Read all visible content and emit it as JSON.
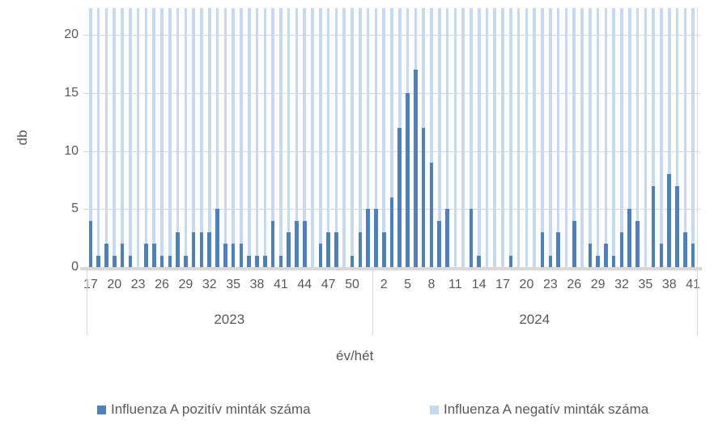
{
  "chart_data": {
    "type": "bar",
    "title": "",
    "xlabel": "év/hét",
    "ylabel": "db",
    "ylim": [
      0,
      22
    ],
    "y_ticks": [
      0,
      5,
      10,
      15,
      20
    ],
    "grid": "horizontal",
    "legend_position": "bottom",
    "bar_layout": "overlapped; negative-series bars exceed the y-axis maximum and are clipped at the plot top",
    "negative_counts_clipped_at_top": true,
    "series": [
      {
        "name": "Influenza A pozitív minták száma",
        "color": "#4d81be"
      },
      {
        "name": "Influenza A negatív minták száma",
        "color": "#c5d9f0"
      }
    ],
    "groups": [
      {
        "year_label": "2023",
        "weeks": [
          17,
          18,
          19,
          20,
          21,
          22,
          23,
          24,
          25,
          26,
          27,
          28,
          29,
          30,
          31,
          32,
          33,
          34,
          35,
          36,
          37,
          38,
          39,
          40,
          41,
          42,
          43,
          44,
          45,
          46,
          47,
          48,
          49,
          50,
          51,
          52
        ],
        "positive_counts": [
          4,
          1,
          2,
          1,
          2,
          1,
          0,
          2,
          2,
          1,
          1,
          3,
          1,
          3,
          3,
          3,
          5,
          2,
          2,
          2,
          1,
          1,
          1,
          4,
          1,
          3,
          4,
          4,
          0,
          2,
          3,
          3,
          0,
          1,
          3,
          5
        ],
        "week_tick_labels": [
          17,
          20,
          23,
          26,
          29,
          32,
          35,
          38,
          41,
          44,
          47,
          50
        ]
      },
      {
        "year_label": "2024",
        "weeks": [
          1,
          2,
          3,
          4,
          5,
          6,
          7,
          8,
          9,
          10,
          11,
          12,
          13,
          14,
          15,
          16,
          17,
          18,
          19,
          20,
          21,
          22,
          23,
          24,
          25,
          26,
          27,
          28,
          29,
          30,
          31,
          32,
          33,
          34,
          35,
          36,
          37,
          38,
          39,
          40,
          41
        ],
        "positive_counts": [
          5,
          3,
          6,
          12,
          15,
          17,
          12,
          9,
          4,
          5,
          0,
          0,
          5,
          1,
          0,
          0,
          0,
          1,
          0,
          0,
          0,
          3,
          1,
          3,
          0,
          4,
          0,
          2,
          1,
          2,
          1,
          3,
          5,
          4,
          0,
          7,
          2,
          8,
          7,
          3,
          2
        ],
        "week_tick_labels": [
          2,
          5,
          8,
          11,
          14,
          17,
          20,
          23,
          26,
          29,
          32,
          35,
          38,
          41
        ]
      }
    ]
  },
  "colors": {
    "positive": "#4d81be",
    "negative": "#c5d9f0",
    "gridline": "#d9d9d9",
    "axis_text": "#595959"
  },
  "y_axis_title": "db",
  "x_axis_title": "év/hét",
  "legend": {
    "positive_label": "Influenza A pozitív minták száma",
    "negative_label": "Influenza A negatív minták száma"
  }
}
